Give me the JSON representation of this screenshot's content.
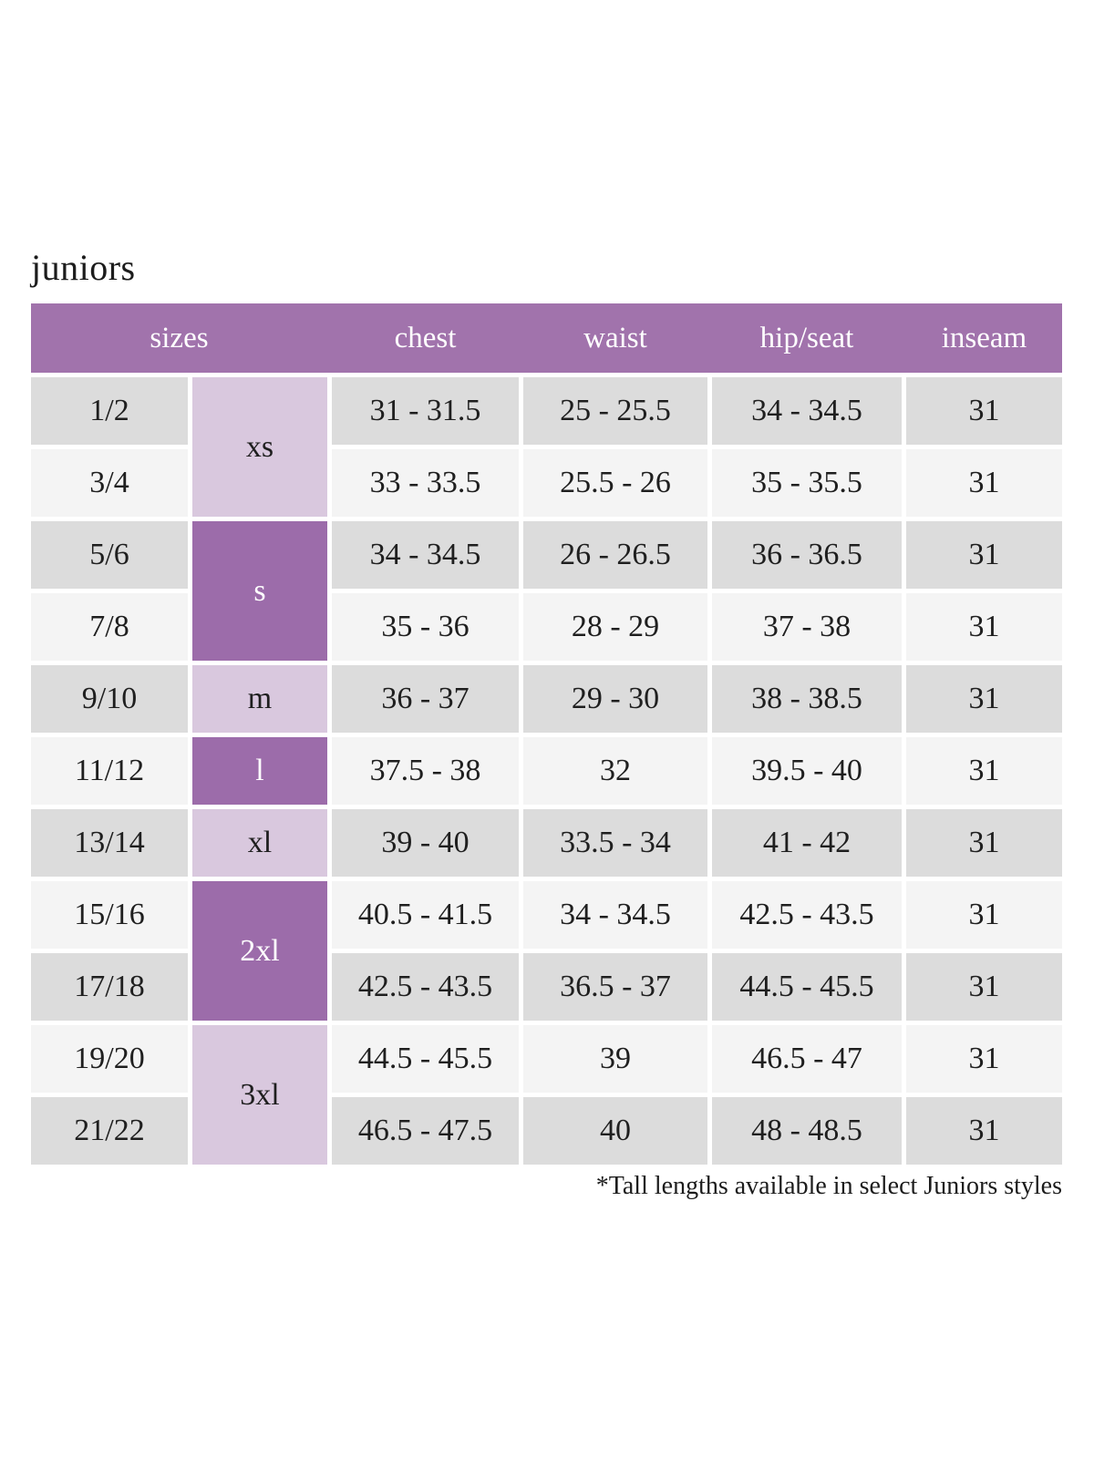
{
  "page": {
    "title": "juniors",
    "footnote": "*Tall lengths available in select Juniors styles"
  },
  "colors": {
    "header_bg": "#a173ac",
    "size_group_dark_bg": "#9c6caa",
    "size_group_light_bg": "#d9c8de",
    "row_gray_bg": "#dcdcdc",
    "row_light_bg": "#f4f4f4",
    "header_text": "#ffffff",
    "body_text": "#1f1f1f"
  },
  "table": {
    "headers": [
      "sizes",
      "chest",
      "waist",
      "hip/seat",
      "inseam"
    ],
    "size_groups": [
      {
        "label": "xs",
        "variant": "light",
        "row_start": 1,
        "row_span": 2
      },
      {
        "label": "s",
        "variant": "dark",
        "row_start": 3,
        "row_span": 2
      },
      {
        "label": "m",
        "variant": "light",
        "row_start": 5,
        "row_span": 1
      },
      {
        "label": "l",
        "variant": "dark",
        "row_start": 6,
        "row_span": 1
      },
      {
        "label": "xl",
        "variant": "light",
        "row_start": 7,
        "row_span": 1
      },
      {
        "label": "2xl",
        "variant": "dark",
        "row_start": 8,
        "row_span": 2
      },
      {
        "label": "3xl",
        "variant": "light",
        "row_start": 10,
        "row_span": 2
      }
    ],
    "rows": [
      {
        "sizes": "1/2",
        "chest": "31 - 31.5",
        "waist": "25 - 25.5",
        "hip_seat": "34 - 34.5",
        "inseam": "31"
      },
      {
        "sizes": "3/4",
        "chest": "33 - 33.5",
        "waist": "25.5 - 26",
        "hip_seat": "35 - 35.5",
        "inseam": "31"
      },
      {
        "sizes": "5/6",
        "chest": "34 - 34.5",
        "waist": "26 - 26.5",
        "hip_seat": "36 - 36.5",
        "inseam": "31"
      },
      {
        "sizes": "7/8",
        "chest": "35 - 36",
        "waist": "28 - 29",
        "hip_seat": "37 - 38",
        "inseam": "31"
      },
      {
        "sizes": "9/10",
        "chest": "36 - 37",
        "waist": "29 - 30",
        "hip_seat": "38 - 38.5",
        "inseam": "31"
      },
      {
        "sizes": "11/12",
        "chest": "37.5 - 38",
        "waist": "32",
        "hip_seat": "39.5 - 40",
        "inseam": "31"
      },
      {
        "sizes": "13/14",
        "chest": "39 - 40",
        "waist": "33.5 - 34",
        "hip_seat": "41 - 42",
        "inseam": "31"
      },
      {
        "sizes": "15/16",
        "chest": "40.5 - 41.5",
        "waist": "34 - 34.5",
        "hip_seat": "42.5 - 43.5",
        "inseam": "31"
      },
      {
        "sizes": "17/18",
        "chest": "42.5 - 43.5",
        "waist": "36.5 - 37",
        "hip_seat": "44.5 - 45.5",
        "inseam": "31"
      },
      {
        "sizes": "19/20",
        "chest": "44.5 - 45.5",
        "waist": "39",
        "hip_seat": "46.5 - 47",
        "inseam": "31"
      },
      {
        "sizes": "21/22",
        "chest": "46.5 - 47.5",
        "waist": "40",
        "hip_seat": "48 - 48.5",
        "inseam": "31"
      }
    ]
  }
}
